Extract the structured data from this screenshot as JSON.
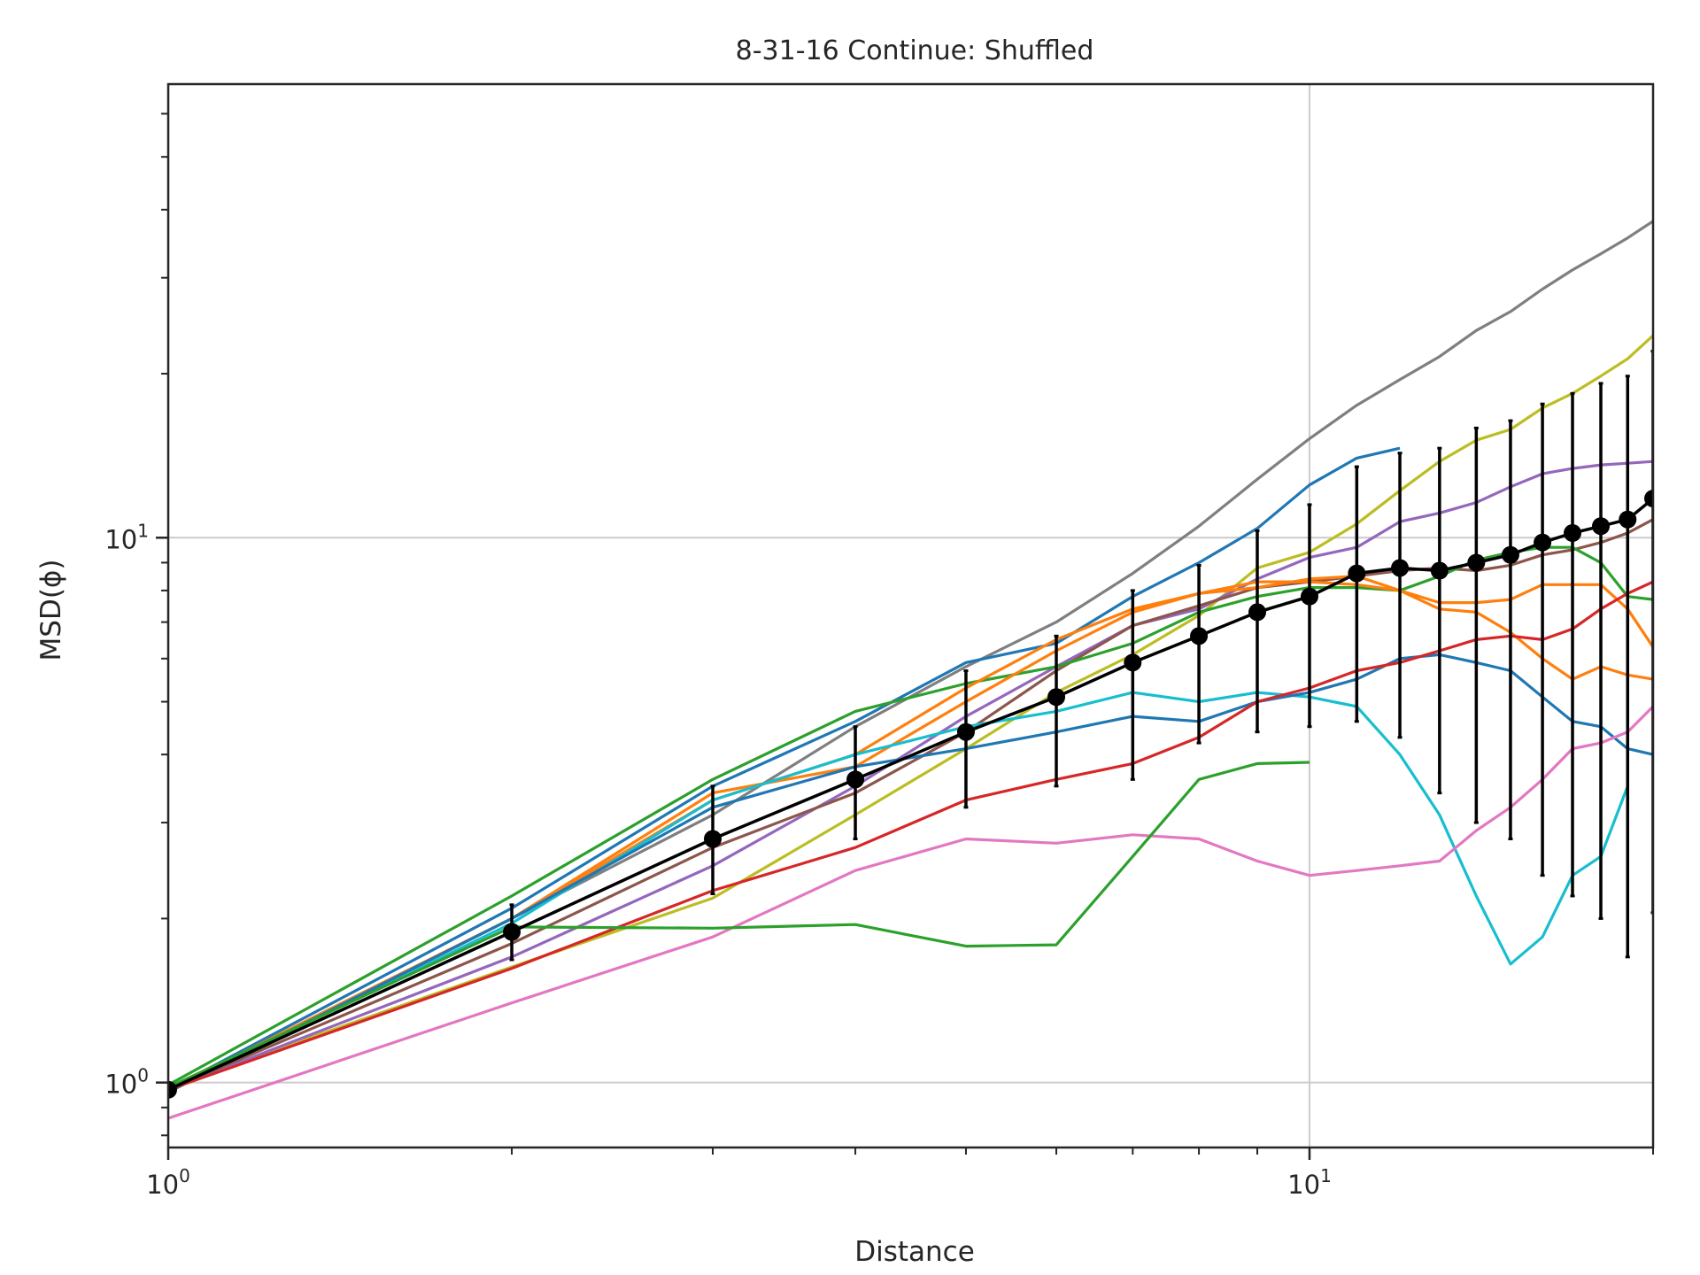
{
  "chart_data": {
    "type": "line",
    "title": "8-31-16 Continue: Shuffled",
    "xlabel": "Distance",
    "ylabel": "MSD(ϕ)",
    "xscale": "log",
    "yscale": "log",
    "xlim": [
      1,
      20
    ],
    "ylim": [
      0.76,
      68
    ],
    "grid": true,
    "x_ticks": [
      {
        "base": "10",
        "exp": "0",
        "value": 1
      },
      {
        "base": "10",
        "exp": "1",
        "value": 10
      }
    ],
    "y_ticks": [
      {
        "base": "10",
        "exp": "0",
        "value": 1
      },
      {
        "base": "10",
        "exp": "1",
        "value": 10
      }
    ],
    "colors": {
      "blue": "#1f77b4",
      "orange": "#ff7f0e",
      "green": "#2ca02c",
      "red": "#d62728",
      "purple": "#9467bd",
      "brown": "#8c564b",
      "pink": "#e377c2",
      "gray": "#7f7f7f",
      "olive": "#bcbd22",
      "cyan": "#17becf",
      "mean": "#000000"
    },
    "series": [
      {
        "color": "#7f7f7f",
        "points": [
          [
            1,
            0.97
          ],
          [
            2,
            2.0
          ],
          [
            3,
            3.1
          ],
          [
            4,
            4.5
          ],
          [
            5,
            5.8
          ],
          [
            6,
            7.0
          ],
          [
            7,
            8.6
          ],
          [
            8,
            10.5
          ],
          [
            9,
            12.8
          ],
          [
            10,
            15.2
          ],
          [
            11,
            17.5
          ],
          [
            12,
            19.5
          ],
          [
            13,
            21.5
          ],
          [
            14,
            24.0
          ],
          [
            15,
            26.0
          ],
          [
            16,
            28.6
          ],
          [
            17,
            31.0
          ],
          [
            18,
            33.2
          ],
          [
            19,
            35.5
          ],
          [
            20,
            38.1
          ]
        ]
      },
      {
        "color": "#bcbd22",
        "points": [
          [
            1,
            0.98
          ],
          [
            2,
            1.63
          ],
          [
            3,
            2.18
          ],
          [
            4,
            3.1
          ],
          [
            5,
            4.1
          ],
          [
            6,
            5.2
          ],
          [
            7,
            6.1
          ],
          [
            8,
            7.2
          ],
          [
            9,
            8.8
          ],
          [
            10,
            9.4
          ],
          [
            11,
            10.6
          ],
          [
            12,
            12.2
          ],
          [
            13,
            13.8
          ],
          [
            14,
            15.1
          ],
          [
            15,
            15.8
          ],
          [
            16,
            17.3
          ],
          [
            17,
            18.4
          ],
          [
            18,
            19.8
          ],
          [
            19,
            21.3
          ],
          [
            20,
            23.5
          ]
        ]
      },
      {
        "color": "#1f77b4",
        "points": [
          [
            1,
            0.97
          ],
          [
            2,
            2.09
          ],
          [
            3,
            3.5
          ],
          [
            4,
            4.6
          ],
          [
            5,
            5.9
          ],
          [
            6,
            6.4
          ],
          [
            7,
            7.8
          ],
          [
            8,
            9.0
          ],
          [
            9,
            10.4
          ],
          [
            10,
            12.5
          ],
          [
            11,
            14.0
          ],
          [
            12,
            14.6
          ]
        ]
      },
      {
        "color": "#9467bd",
        "points": [
          [
            1,
            0.97
          ],
          [
            2,
            1.7
          ],
          [
            3,
            2.5
          ],
          [
            4,
            3.5
          ],
          [
            5,
            4.7
          ],
          [
            6,
            5.8
          ],
          [
            7,
            6.9
          ],
          [
            8,
            7.4
          ],
          [
            9,
            8.4
          ],
          [
            10,
            9.2
          ],
          [
            11,
            9.6
          ],
          [
            12,
            10.7
          ],
          [
            13,
            11.1
          ],
          [
            14,
            11.6
          ],
          [
            15,
            12.4
          ],
          [
            16,
            13.1
          ],
          [
            17,
            13.4
          ],
          [
            18,
            13.6
          ],
          [
            19,
            13.7
          ],
          [
            20,
            13.8
          ]
        ]
      },
      {
        "color": "#8c564b",
        "points": [
          [
            1,
            0.97
          ],
          [
            2,
            1.8
          ],
          [
            3,
            2.7
          ],
          [
            4,
            3.4
          ],
          [
            5,
            4.4
          ],
          [
            6,
            5.7
          ],
          [
            7,
            6.9
          ],
          [
            8,
            7.5
          ],
          [
            9,
            8.1
          ],
          [
            10,
            8.3
          ],
          [
            11,
            8.5
          ],
          [
            12,
            8.7
          ],
          [
            13,
            8.8
          ],
          [
            14,
            8.7
          ],
          [
            15,
            8.9
          ],
          [
            16,
            9.3
          ],
          [
            17,
            9.5
          ],
          [
            18,
            9.8
          ],
          [
            19,
            10.2
          ],
          [
            20,
            10.8
          ]
        ]
      },
      {
        "color": "#2ca02c",
        "points": [
          [
            1,
            0.99
          ],
          [
            2,
            2.2
          ],
          [
            3,
            3.6
          ],
          [
            4,
            4.8
          ],
          [
            5,
            5.4
          ],
          [
            6,
            5.8
          ],
          [
            7,
            6.4
          ],
          [
            8,
            7.3
          ],
          [
            9,
            7.8
          ],
          [
            10,
            8.1
          ],
          [
            11,
            8.1
          ],
          [
            12,
            8.0
          ],
          [
            13,
            8.5
          ],
          [
            14,
            9.1
          ],
          [
            15,
            9.4
          ],
          [
            16,
            9.6
          ],
          [
            17,
            9.6
          ],
          [
            18,
            9.0
          ],
          [
            19,
            7.8
          ],
          [
            20,
            7.7
          ]
        ]
      },
      {
        "color": "#ff7f0e",
        "points": [
          [
            1,
            0.97
          ],
          [
            2,
            2.0
          ],
          [
            3,
            3.3
          ],
          [
            4,
            4.0
          ],
          [
            5,
            5.3
          ],
          [
            6,
            6.5
          ],
          [
            7,
            7.4
          ],
          [
            8,
            7.9
          ],
          [
            9,
            8.3
          ],
          [
            10,
            8.3
          ],
          [
            11,
            8.2
          ],
          [
            12,
            8.0
          ],
          [
            13,
            7.4
          ],
          [
            14,
            7.3
          ],
          [
            15,
            6.7
          ],
          [
            16,
            6.0
          ],
          [
            17,
            5.5
          ],
          [
            18,
            5.8
          ],
          [
            19,
            5.6
          ],
          [
            20,
            5.5
          ]
        ]
      },
      {
        "color": "#ff7f0e",
        "points": [
          [
            1,
            0.97
          ],
          [
            2,
            2.0
          ],
          [
            3,
            3.4
          ],
          [
            4,
            3.8
          ],
          [
            5,
            5.0
          ],
          [
            6,
            6.2
          ],
          [
            7,
            7.3
          ],
          [
            8,
            7.9
          ],
          [
            9,
            8.1
          ],
          [
            10,
            8.4
          ],
          [
            11,
            8.5
          ],
          [
            12,
            8.0
          ],
          [
            13,
            7.6
          ],
          [
            14,
            7.6
          ],
          [
            15,
            7.7
          ],
          [
            16,
            8.2
          ],
          [
            17,
            8.2
          ],
          [
            18,
            8.2
          ],
          [
            19,
            7.4
          ],
          [
            20,
            6.3
          ]
        ]
      },
      {
        "color": "#17becf",
        "points": [
          [
            1,
            0.97
          ],
          [
            2,
            1.96
          ],
          [
            3,
            3.3
          ],
          [
            4,
            4.0
          ],
          [
            5,
            4.5
          ],
          [
            6,
            4.8
          ],
          [
            7,
            5.2
          ],
          [
            8,
            5.0
          ],
          [
            9,
            5.2
          ],
          [
            10,
            5.1
          ],
          [
            11,
            4.9
          ],
          [
            12,
            4.0
          ],
          [
            13,
            3.1
          ],
          [
            14,
            2.2
          ],
          [
            15,
            1.65
          ],
          [
            16,
            1.85
          ],
          [
            17,
            2.4
          ],
          [
            18,
            2.6
          ],
          [
            19,
            3.5
          ]
        ]
      },
      {
        "color": "#1f77b4",
        "points": [
          [
            1,
            0.96
          ],
          [
            2,
            2.0
          ],
          [
            3,
            3.2
          ],
          [
            4,
            3.8
          ],
          [
            5,
            4.1
          ],
          [
            6,
            4.4
          ],
          [
            7,
            4.7
          ],
          [
            8,
            4.6
          ],
          [
            9,
            5.0
          ],
          [
            10,
            5.2
          ],
          [
            11,
            5.5
          ],
          [
            12,
            6.0
          ],
          [
            13,
            6.1
          ],
          [
            14,
            5.9
          ],
          [
            15,
            5.7
          ],
          [
            16,
            5.1
          ],
          [
            17,
            4.6
          ],
          [
            18,
            4.5
          ],
          [
            19,
            4.1
          ],
          [
            20,
            4.0
          ]
        ]
      },
      {
        "color": "#d62728",
        "points": [
          [
            1,
            0.97
          ],
          [
            2,
            1.62
          ],
          [
            3,
            2.25
          ],
          [
            4,
            2.7
          ],
          [
            5,
            3.3
          ],
          [
            6,
            3.6
          ],
          [
            7,
            3.85
          ],
          [
            8,
            4.3
          ],
          [
            9,
            5.0
          ],
          [
            10,
            5.3
          ],
          [
            11,
            5.7
          ],
          [
            12,
            5.9
          ],
          [
            13,
            6.2
          ],
          [
            14,
            6.5
          ],
          [
            15,
            6.6
          ],
          [
            16,
            6.5
          ],
          [
            17,
            6.8
          ],
          [
            18,
            7.4
          ],
          [
            19,
            7.9
          ],
          [
            20,
            8.3
          ]
        ]
      },
      {
        "color": "#e377c2",
        "points": [
          [
            1,
            0.86
          ],
          [
            2,
            1.4
          ],
          [
            3,
            1.85
          ],
          [
            4,
            2.45
          ],
          [
            5,
            2.8
          ],
          [
            6,
            2.75
          ],
          [
            7,
            2.85
          ],
          [
            8,
            2.8
          ],
          [
            9,
            2.55
          ],
          [
            10,
            2.4
          ],
          [
            11,
            2.45
          ],
          [
            12,
            2.5
          ],
          [
            13,
            2.55
          ],
          [
            14,
            2.9
          ],
          [
            15,
            3.2
          ],
          [
            16,
            3.6
          ],
          [
            17,
            4.1
          ],
          [
            18,
            4.2
          ],
          [
            19,
            4.4
          ],
          [
            20,
            4.9
          ]
        ]
      },
      {
        "color": "#2ca02c",
        "points": [
          [
            1,
            0.98
          ],
          [
            2,
            1.93
          ],
          [
            3,
            1.92
          ],
          [
            4,
            1.95
          ],
          [
            5,
            1.78
          ],
          [
            6,
            1.79
          ],
          [
            7,
            2.6
          ],
          [
            8,
            3.6
          ],
          [
            9,
            3.85
          ],
          [
            10,
            3.87
          ]
        ]
      }
    ],
    "mean": {
      "color": "#000000",
      "points": [
        [
          1,
          0.97,
          0.97,
          0.97
        ],
        [
          2,
          1.89,
          1.68,
          2.12
        ],
        [
          3,
          2.8,
          2.22,
          3.5
        ],
        [
          4,
          3.6,
          2.8,
          4.5
        ],
        [
          5,
          4.4,
          3.2,
          5.7
        ],
        [
          6,
          5.1,
          3.5,
          6.6
        ],
        [
          7,
          5.9,
          3.6,
          8.0
        ],
        [
          8,
          6.6,
          4.2,
          8.9
        ],
        [
          9,
          7.3,
          4.4,
          10.3
        ],
        [
          10,
          7.8,
          4.5,
          11.5
        ],
        [
          11,
          8.6,
          4.6,
          13.5
        ],
        [
          12,
          8.8,
          4.3,
          14.3
        ],
        [
          13,
          8.7,
          3.4,
          14.6
        ],
        [
          14,
          9.0,
          3.0,
          15.9
        ],
        [
          15,
          9.3,
          2.8,
          16.4
        ],
        [
          16,
          9.8,
          2.4,
          17.6
        ],
        [
          17,
          10.2,
          2.2,
          18.4
        ],
        [
          18,
          10.5,
          2.0,
          19.2
        ],
        [
          19,
          10.8,
          1.7,
          19.8
        ],
        [
          20,
          11.8,
          2.05,
          22.0
        ]
      ]
    }
  }
}
